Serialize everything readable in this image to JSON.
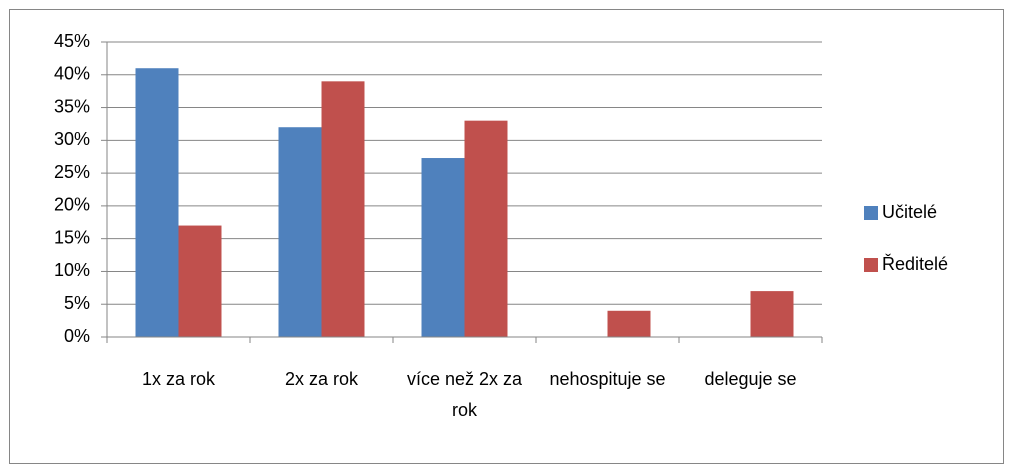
{
  "chart_data": {
    "type": "bar",
    "categories": [
      "1x za rok",
      "2x za rok",
      "více než 2x za rok",
      "nehospituje se",
      "deleguje se"
    ],
    "series": [
      {
        "name": "Učitelé",
        "color": "#4f81bd",
        "values": [
          41,
          32,
          27.3,
          0,
          0
        ]
      },
      {
        "name": "Ředitelé",
        "color": "#c0504d",
        "values": [
          17,
          39,
          33,
          4,
          7
        ]
      }
    ],
    "ylim": [
      0,
      45
    ],
    "yticks": [
      {
        "value": 0,
        "label": "0%"
      },
      {
        "value": 5,
        "label": "5%"
      },
      {
        "value": 10,
        "label": "10%"
      },
      {
        "value": 15,
        "label": "15%"
      },
      {
        "value": 20,
        "label": "20%"
      },
      {
        "value": 25,
        "label": "25%"
      },
      {
        "value": 30,
        "label": "30%"
      },
      {
        "value": 35,
        "label": "35%"
      },
      {
        "value": 40,
        "label": "40%"
      },
      {
        "value": 45,
        "label": "45%"
      }
    ],
    "grid": true,
    "legend": "right"
  }
}
